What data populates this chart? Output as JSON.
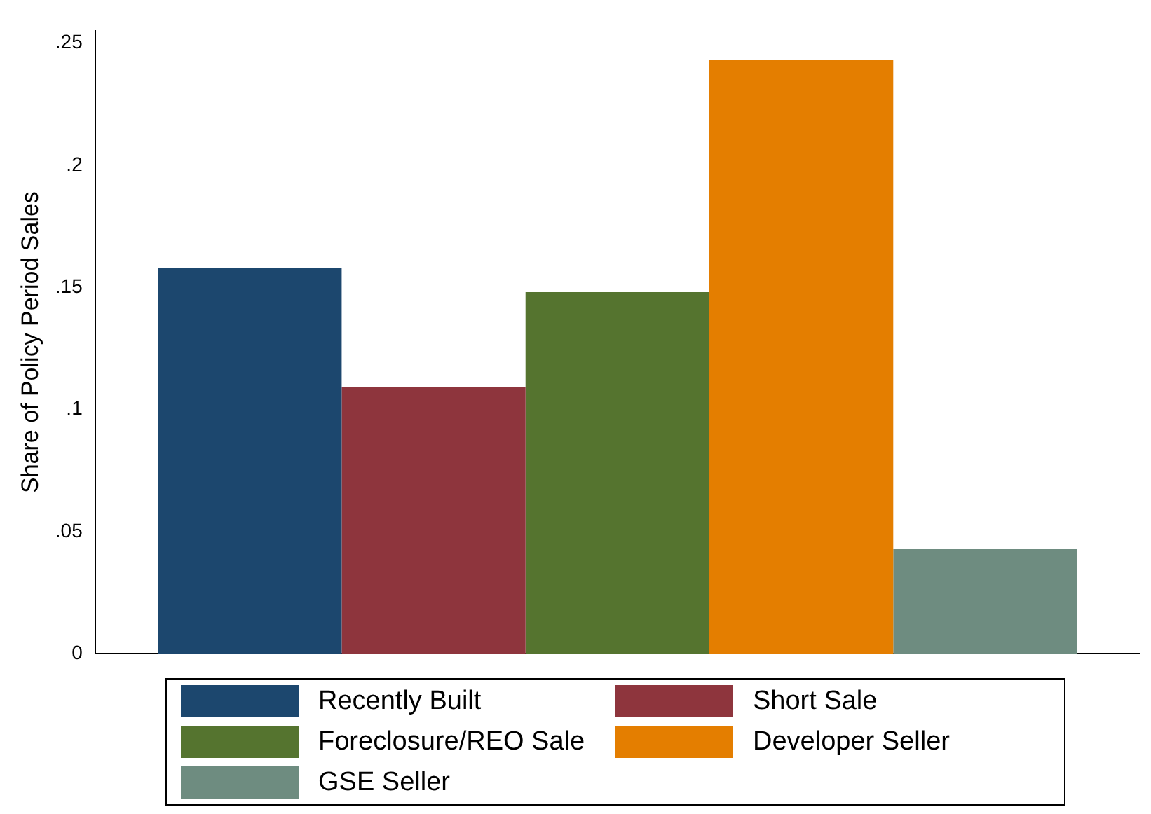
{
  "chart_data": {
    "type": "bar",
    "ylabel": "Share of Policy Period Sales",
    "categories": [
      null
    ],
    "series": [
      {
        "name": "Recently Built",
        "color": "#1c476e",
        "values": [
          0.158
        ]
      },
      {
        "name": "Short Sale",
        "color": "#8e353d",
        "values": [
          0.109
        ]
      },
      {
        "name": "Foreclosure/REO Sale",
        "color": "#55742f",
        "values": [
          0.148
        ]
      },
      {
        "name": "Developer Seller",
        "color": "#e47e00",
        "values": [
          0.243
        ]
      },
      {
        "name": "GSE Seller",
        "color": "#6e8c80",
        "values": [
          0.043
        ]
      }
    ],
    "ylim": [
      0,
      0.255
    ],
    "yticks": [
      {
        "value": 0,
        "label": "0"
      },
      {
        "value": 0.05,
        "label": ".05"
      },
      {
        "value": 0.1,
        "label": ".1"
      },
      {
        "value": 0.15,
        "label": ".15"
      },
      {
        "value": 0.2,
        "label": ".2"
      },
      {
        "value": 0.25,
        "label": ".25"
      }
    ],
    "grid": false,
    "legend": "bottom"
  }
}
